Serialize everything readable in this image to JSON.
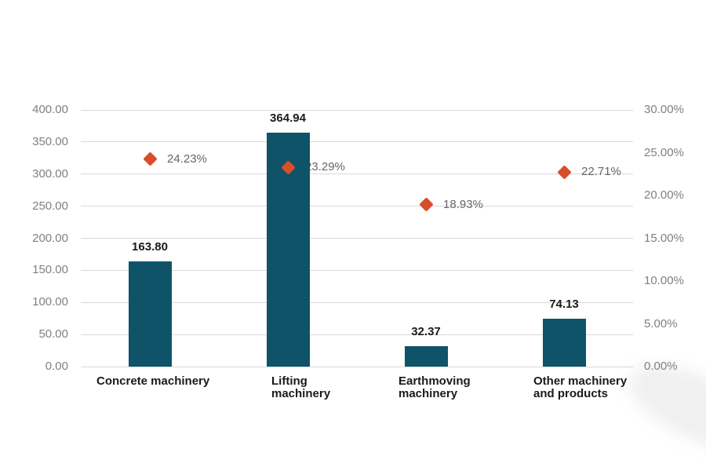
{
  "chart_data": {
    "type": "bar",
    "subtype": "combo-bar-scatter",
    "title": "",
    "categories": [
      "Concrete machinery",
      "Lifting machinery",
      "Earthmoving machinery",
      "Other machinery and products"
    ],
    "category_label_lines": [
      [
        "Concrete machinery"
      ],
      [
        "Lifting",
        "machinery"
      ],
      [
        "Earthmoving",
        "machinery"
      ],
      [
        "Other machinery",
        "and products"
      ]
    ],
    "series": [
      {
        "name": "revenue-bars",
        "type": "bar",
        "axis": "left",
        "values": [
          163.8,
          364.94,
          32.37,
          74.13
        ],
        "labels": [
          "163.80",
          "364.94",
          "32.37",
          "74.13"
        ],
        "color": "#0f5368"
      },
      {
        "name": "percentage-markers",
        "type": "scatter",
        "axis": "right",
        "marker": "diamond",
        "values": [
          24.23,
          23.29,
          18.93,
          22.71
        ],
        "labels": [
          "24.23%",
          "23.29%",
          "18.93%",
          "22.71%"
        ],
        "color": "#d84e2a"
      }
    ],
    "left_axis": {
      "min": 0,
      "max": 400,
      "step": 50,
      "ticks": [
        "400.00",
        "350.00",
        "300.00",
        "250.00",
        "200.00",
        "150.00",
        "100.00",
        "50.00",
        "0.00"
      ]
    },
    "right_axis": {
      "min": 0,
      "max": 30,
      "step": 5,
      "ticks": [
        "30.00%",
        "25.00%",
        "20.00%",
        "15.00%",
        "10.00%",
        "5.00%",
        "0.00%"
      ]
    },
    "grid": true,
    "legend": "none",
    "colors": {
      "bar": "#0f5368",
      "marker": "#d84e2a",
      "grid": "#d9d9d9",
      "axis_text": "#808080",
      "value_text": "#1a1a1a",
      "marker_text": "#666666"
    }
  }
}
